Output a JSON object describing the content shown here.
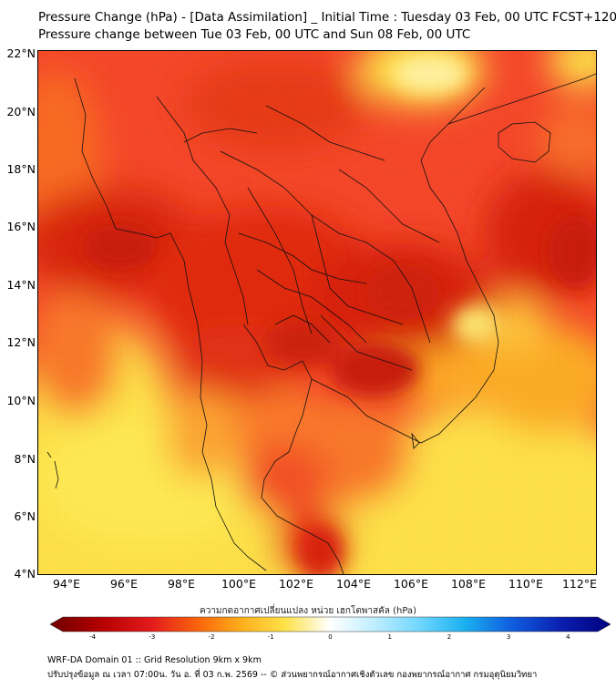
{
  "title_line1": "Pressure Change (hPa) - [Data Assimilation] _ Initial Time : Tuesday 03 Feb, 00 UTC FCST+120",
  "title_line2": "Pressure change between Tue 03 Feb, 00 UTC and Sun 08 Feb, 00 UTC",
  "map": {
    "lat_labels": [
      "22°N",
      "20°N",
      "18°N",
      "16°N",
      "14°N",
      "12°N",
      "10°N",
      "8°N",
      "6°N",
      "4°N"
    ],
    "lon_labels": [
      "94°E",
      "96°E",
      "98°E",
      "100°E",
      "102°E",
      "104°E",
      "106°E",
      "108°E",
      "110°E",
      "112°E"
    ],
    "lat_range": [
      4,
      22.3
    ],
    "lon_range": [
      93.1,
      112.6
    ],
    "field_description_colors": {
      "strong_fall": "#c81e0a",
      "fall": "#f03010",
      "moderate_fall": "#f86a1c",
      "weak_fall": "#fcb226",
      "slight_fall": "#fde04a",
      "near_zero": "#fff4a8"
    }
  },
  "colorbar": {
    "label": "ความกดอากาศเปลี่ยนแปลง หน่วย เฮกโตพาสคัล (hPa)",
    "ticks": [
      "-4",
      "-3",
      "-2",
      "-1",
      "0",
      "1",
      "2",
      "3",
      "4"
    ],
    "min": -4.5,
    "max": 4.5,
    "colors": [
      "#6e0000",
      "#b40000",
      "#e31a1c",
      "#fb6a0c",
      "#fdae1a",
      "#fee24a",
      "#ffffc0",
      "#d8f6ff",
      "#7fdcff",
      "#1ab0f0",
      "#1060e0",
      "#0a20b0",
      "#000080"
    ]
  },
  "footer_line1": "WRF-DA Domain 01 :: Grid Resolution 9km x 9km",
  "footer_line2": "ปรับปรุงข้อมูล ณ เวลา 07:00น. วัน อ. ที่ 03 ก.พ. 2569 -- © ส่วนพยากรณ์อากาศเชิงตัวเลข กองพยากรณ์อากาศ กรมอุตุนิยมวิทยา"
}
